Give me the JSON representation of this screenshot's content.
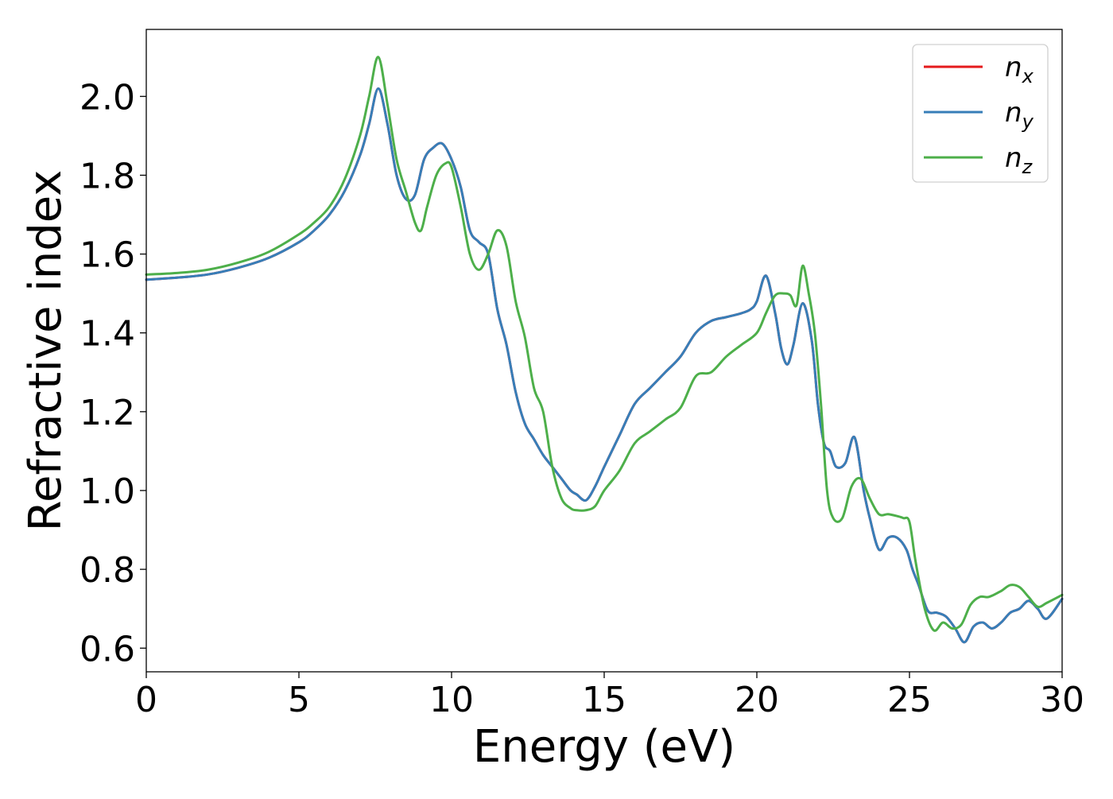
{
  "chart_data": {
    "type": "line",
    "title": "",
    "xlabel": "Energy (eV)",
    "ylabel": "Refractive index",
    "xlim": [
      0,
      30
    ],
    "ylim": [
      0.54,
      2.17
    ],
    "xticks": [
      0,
      5,
      10,
      15,
      20,
      25,
      30
    ],
    "xtick_labels": [
      "0",
      "5",
      "10",
      "15",
      "20",
      "25",
      "30"
    ],
    "yticks": [
      0.6,
      0.8,
      1.0,
      1.2,
      1.4,
      1.6,
      1.8,
      2.0
    ],
    "ytick_labels": [
      "0.6",
      "0.8",
      "1.0",
      "1.2",
      "1.4",
      "1.6",
      "1.8",
      "2.0"
    ],
    "grid": false,
    "legend_position": "top-right",
    "series": [
      {
        "name": "n_x",
        "legend_base": "n",
        "legend_sub": "x",
        "color": "#e41a1c",
        "x": [
          0,
          1,
          2,
          3,
          4,
          5,
          5.5,
          6,
          6.5,
          7,
          7.3,
          7.6,
          7.9,
          8.2,
          8.5,
          8.8,
          9.1,
          9.4,
          9.7,
          10.0,
          10.3,
          10.6,
          10.9,
          11.2,
          11.5,
          11.8,
          12.1,
          12.4,
          12.7,
          13.0,
          13.3,
          13.6,
          13.9,
          14.1,
          14.4,
          14.7,
          15.0,
          15.5,
          16.0,
          16.5,
          17.0,
          17.5,
          18.0,
          18.5,
          19.0,
          19.5,
          19.8,
          20.0,
          20.3,
          20.6,
          20.8,
          21.0,
          21.2,
          21.5,
          21.8,
          22.0,
          22.2,
          22.4,
          22.6,
          22.9,
          23.2,
          23.5,
          23.7,
          24.0,
          24.3,
          24.6,
          24.9,
          25.1,
          25.3,
          25.6,
          25.9,
          26.2,
          26.5,
          26.8,
          27.1,
          27.4,
          27.7,
          28.0,
          28.3,
          28.6,
          28.9,
          29.2,
          29.5,
          30.0
        ],
        "values": [
          1.535,
          1.54,
          1.548,
          1.565,
          1.59,
          1.63,
          1.66,
          1.7,
          1.76,
          1.85,
          1.93,
          2.02,
          1.93,
          1.8,
          1.74,
          1.75,
          1.84,
          1.87,
          1.88,
          1.84,
          1.77,
          1.66,
          1.63,
          1.6,
          1.46,
          1.37,
          1.25,
          1.17,
          1.13,
          1.09,
          1.06,
          1.03,
          1.0,
          0.99,
          0.975,
          1.01,
          1.06,
          1.14,
          1.22,
          1.26,
          1.3,
          1.34,
          1.4,
          1.43,
          1.44,
          1.45,
          1.46,
          1.48,
          1.545,
          1.45,
          1.36,
          1.32,
          1.37,
          1.475,
          1.38,
          1.22,
          1.12,
          1.1,
          1.06,
          1.07,
          1.135,
          1.0,
          0.93,
          0.85,
          0.88,
          0.88,
          0.85,
          0.8,
          0.76,
          0.695,
          0.69,
          0.68,
          0.65,
          0.615,
          0.655,
          0.665,
          0.65,
          0.665,
          0.69,
          0.7,
          0.72,
          0.7,
          0.675,
          0.725
        ]
      },
      {
        "name": "n_y",
        "legend_base": "n",
        "legend_sub": "y",
        "color": "#377eb8",
        "x": [
          0,
          1,
          2,
          3,
          4,
          5,
          5.5,
          6,
          6.5,
          7,
          7.3,
          7.6,
          7.9,
          8.2,
          8.5,
          8.8,
          9.1,
          9.4,
          9.7,
          10.0,
          10.3,
          10.6,
          10.9,
          11.2,
          11.5,
          11.8,
          12.1,
          12.4,
          12.7,
          13.0,
          13.3,
          13.6,
          13.9,
          14.1,
          14.4,
          14.7,
          15.0,
          15.5,
          16.0,
          16.5,
          17.0,
          17.5,
          18.0,
          18.5,
          19.0,
          19.5,
          19.8,
          20.0,
          20.3,
          20.6,
          20.8,
          21.0,
          21.2,
          21.5,
          21.8,
          22.0,
          22.2,
          22.4,
          22.6,
          22.9,
          23.2,
          23.5,
          23.7,
          24.0,
          24.3,
          24.6,
          24.9,
          25.1,
          25.3,
          25.6,
          25.9,
          26.2,
          26.5,
          26.8,
          27.1,
          27.4,
          27.7,
          28.0,
          28.3,
          28.6,
          28.9,
          29.2,
          29.5,
          30.0
        ],
        "values": [
          1.535,
          1.54,
          1.548,
          1.565,
          1.59,
          1.63,
          1.66,
          1.7,
          1.76,
          1.85,
          1.93,
          2.02,
          1.93,
          1.8,
          1.74,
          1.75,
          1.84,
          1.87,
          1.88,
          1.84,
          1.77,
          1.66,
          1.63,
          1.6,
          1.46,
          1.37,
          1.25,
          1.17,
          1.13,
          1.09,
          1.06,
          1.03,
          1.0,
          0.99,
          0.975,
          1.01,
          1.06,
          1.14,
          1.22,
          1.26,
          1.3,
          1.34,
          1.4,
          1.43,
          1.44,
          1.45,
          1.46,
          1.48,
          1.545,
          1.45,
          1.36,
          1.32,
          1.37,
          1.475,
          1.38,
          1.22,
          1.12,
          1.1,
          1.06,
          1.07,
          1.135,
          1.0,
          0.93,
          0.85,
          0.88,
          0.88,
          0.85,
          0.8,
          0.76,
          0.695,
          0.69,
          0.68,
          0.65,
          0.615,
          0.655,
          0.665,
          0.65,
          0.665,
          0.69,
          0.7,
          0.72,
          0.7,
          0.675,
          0.725
        ]
      },
      {
        "name": "n_z",
        "legend_base": "n",
        "legend_sub": "z",
        "color": "#4daf4a",
        "x": [
          0,
          1,
          2,
          3,
          4,
          5,
          5.5,
          6,
          6.5,
          7,
          7.3,
          7.6,
          7.9,
          8.2,
          8.5,
          8.8,
          9.0,
          9.2,
          9.5,
          9.8,
          10.0,
          10.3,
          10.6,
          10.9,
          11.2,
          11.5,
          11.8,
          12.1,
          12.4,
          12.7,
          13.0,
          13.3,
          13.6,
          13.9,
          14.1,
          14.4,
          14.7,
          15.0,
          15.5,
          16.0,
          16.5,
          17.0,
          17.5,
          18.0,
          18.5,
          19.0,
          19.5,
          20.0,
          20.3,
          20.6,
          20.9,
          21.1,
          21.3,
          21.5,
          21.7,
          21.9,
          22.1,
          22.3,
          22.5,
          22.8,
          23.1,
          23.4,
          23.7,
          24.0,
          24.3,
          24.6,
          24.8,
          25.0,
          25.2,
          25.5,
          25.8,
          26.1,
          26.4,
          26.7,
          27.0,
          27.3,
          27.6,
          28.0,
          28.3,
          28.6,
          28.9,
          29.2,
          29.5,
          30.0
        ],
        "values": [
          1.548,
          1.552,
          1.56,
          1.578,
          1.605,
          1.65,
          1.68,
          1.72,
          1.79,
          1.9,
          2.0,
          2.1,
          1.98,
          1.84,
          1.76,
          1.68,
          1.66,
          1.72,
          1.8,
          1.83,
          1.82,
          1.72,
          1.6,
          1.56,
          1.6,
          1.66,
          1.62,
          1.48,
          1.39,
          1.26,
          1.2,
          1.06,
          0.98,
          0.955,
          0.95,
          0.95,
          0.96,
          1.0,
          1.05,
          1.12,
          1.15,
          1.18,
          1.21,
          1.29,
          1.3,
          1.34,
          1.37,
          1.4,
          1.45,
          1.495,
          1.5,
          1.495,
          1.47,
          1.57,
          1.5,
          1.4,
          1.22,
          1.0,
          0.93,
          0.93,
          1.01,
          1.03,
          0.98,
          0.94,
          0.94,
          0.935,
          0.93,
          0.92,
          0.82,
          0.7,
          0.645,
          0.665,
          0.65,
          0.66,
          0.71,
          0.73,
          0.73,
          0.745,
          0.76,
          0.755,
          0.73,
          0.705,
          0.715,
          0.735
        ]
      }
    ]
  }
}
